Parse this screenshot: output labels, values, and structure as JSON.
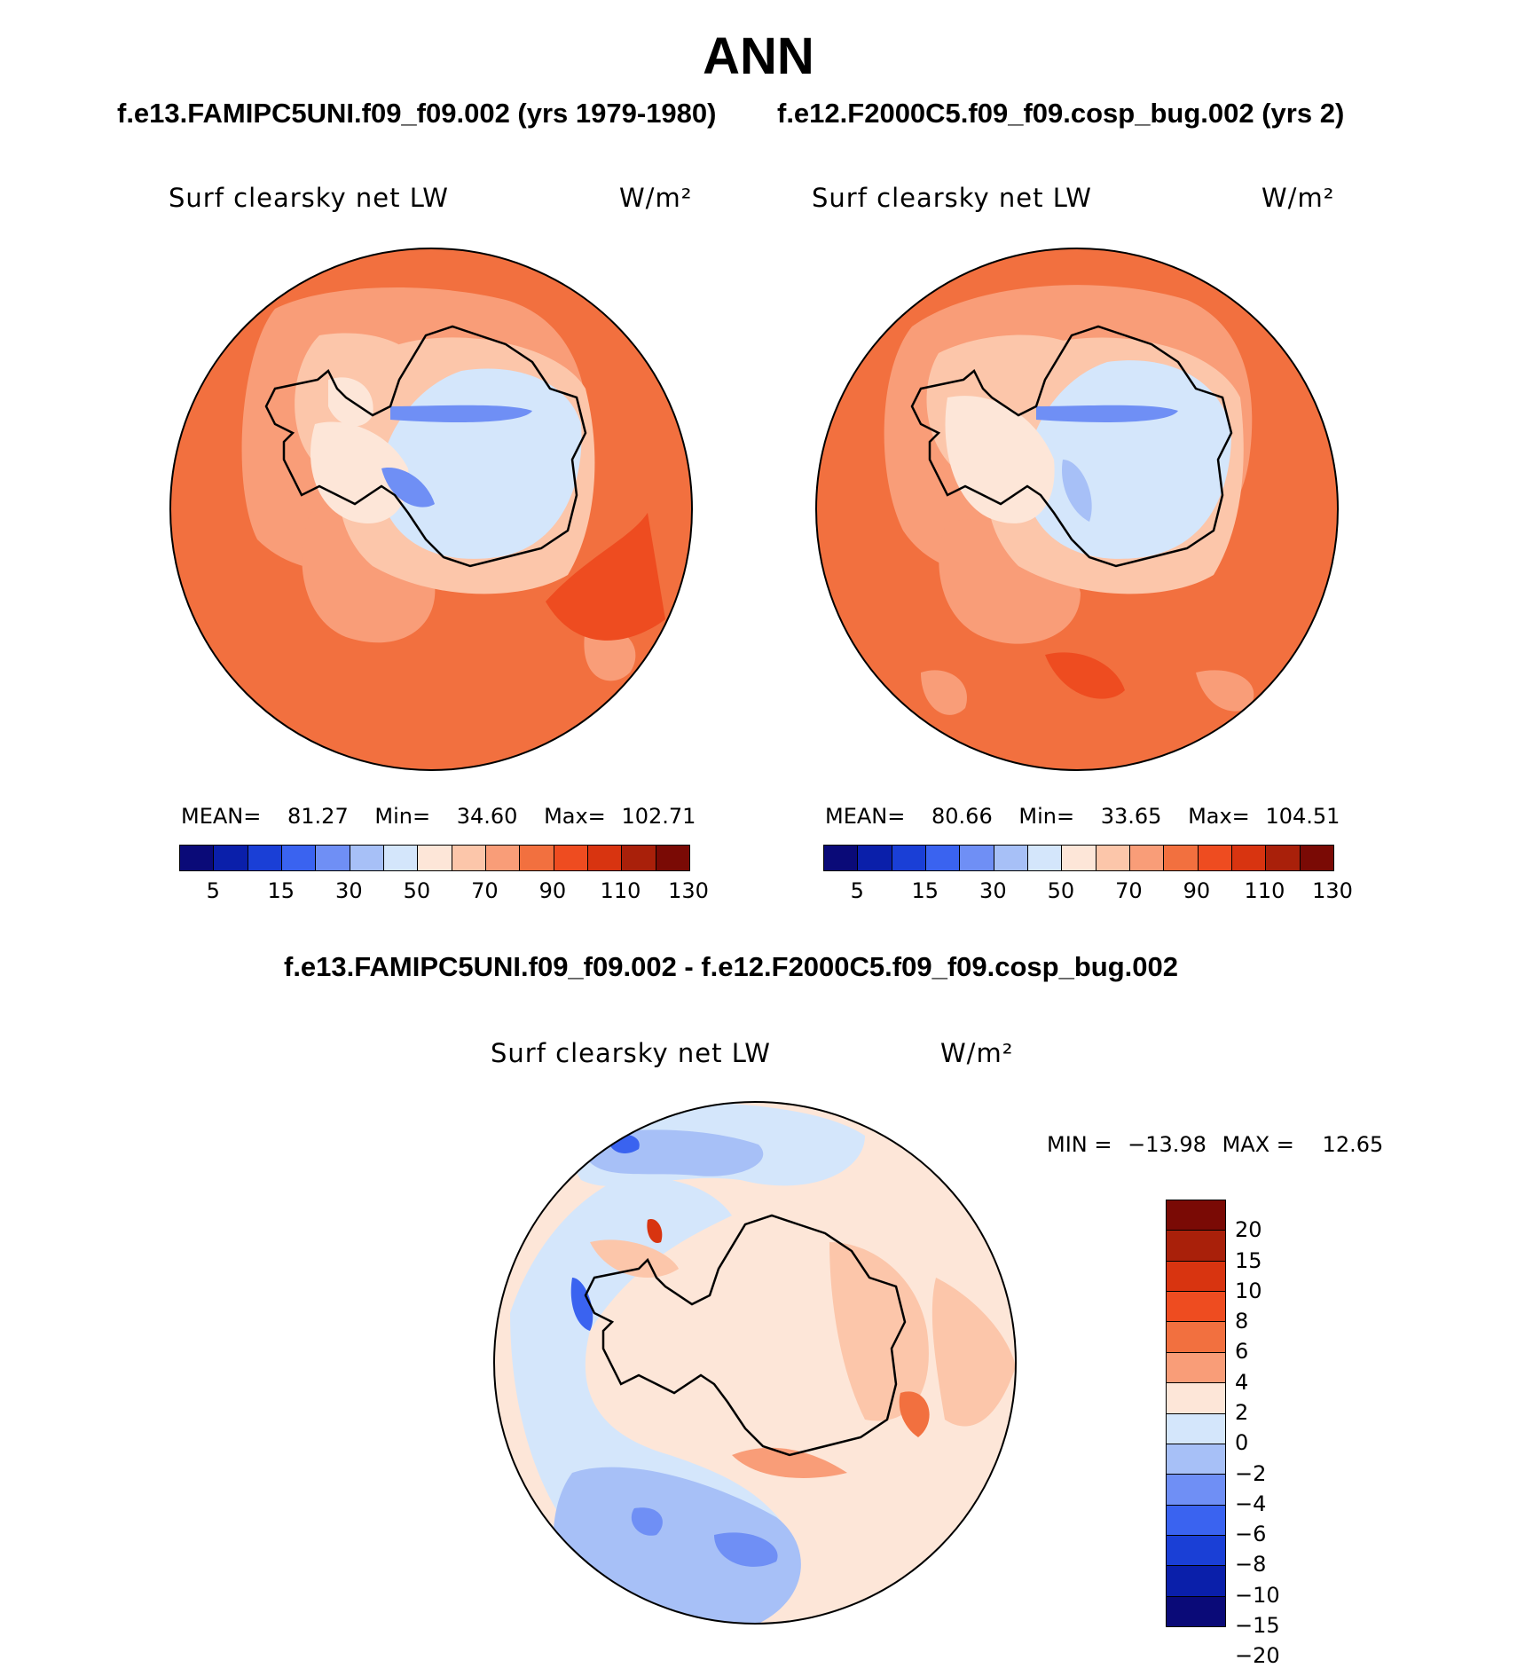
{
  "title": "ANN",
  "case_a": "f.e13.FAMIPC5UNI.f09_f09.002 (yrs 1979-1980)",
  "case_b": "f.e12.F2000C5.f09_f09.cosp_bug.002 (yrs 2)",
  "diff_title": "f.e13.FAMIPC5UNI.f09_f09.002 - f.e12.F2000C5.f09_f09.cosp_bug.002",
  "panels": [
    {
      "variable": "Surf clearsky net LW",
      "units": "W/m²",
      "mean_label": "MEAN=",
      "mean": "81.27",
      "min_label": "Min=",
      "min": "34.60",
      "max_label": "Max=",
      "max": "102.71"
    },
    {
      "variable": "Surf clearsky net LW",
      "units": "W/m²",
      "mean_label": "MEAN=",
      "mean": "80.66",
      "min_label": "Min=",
      "min": "33.65",
      "max_label": "Max=",
      "max": "104.51"
    }
  ],
  "diff_panel": {
    "variable": "Surf clearsky net LW",
    "units": "W/m²",
    "min_label": "MIN =",
    "min": "−13.98",
    "max_label": "MAX =",
    "max": "12.65"
  },
  "colorbar": {
    "colors": [
      "#0a0a78",
      "#0a1faa",
      "#1a3fd6",
      "#3a63f0",
      "#6f8ff5",
      "#a7c0f7",
      "#d4e6fb",
      "#fde6d8",
      "#fcc6aa",
      "#f99d78",
      "#f2703f",
      "#ee4c20",
      "#d83410",
      "#a9200a",
      "#7a0a05"
    ],
    "tick_labels": [
      "5",
      "15",
      "30",
      "50",
      "70",
      "90",
      "110",
      "130"
    ]
  },
  "diff_colorbar": {
    "colors": [
      "#7a0a05",
      "#a9200a",
      "#d83410",
      "#ee4c20",
      "#f2703f",
      "#f99d78",
      "#fde6d8",
      "#d4e6fb",
      "#a7c0f7",
      "#6f8ff5",
      "#3a63f0",
      "#1a3fd6",
      "#0a1faa",
      "#0a0a78"
    ],
    "tick_labels": [
      "20",
      "15",
      "10",
      "8",
      "6",
      "4",
      "2",
      "0",
      "−2",
      "−4",
      "−6",
      "−8",
      "−10",
      "−15",
      "−20"
    ]
  }
}
